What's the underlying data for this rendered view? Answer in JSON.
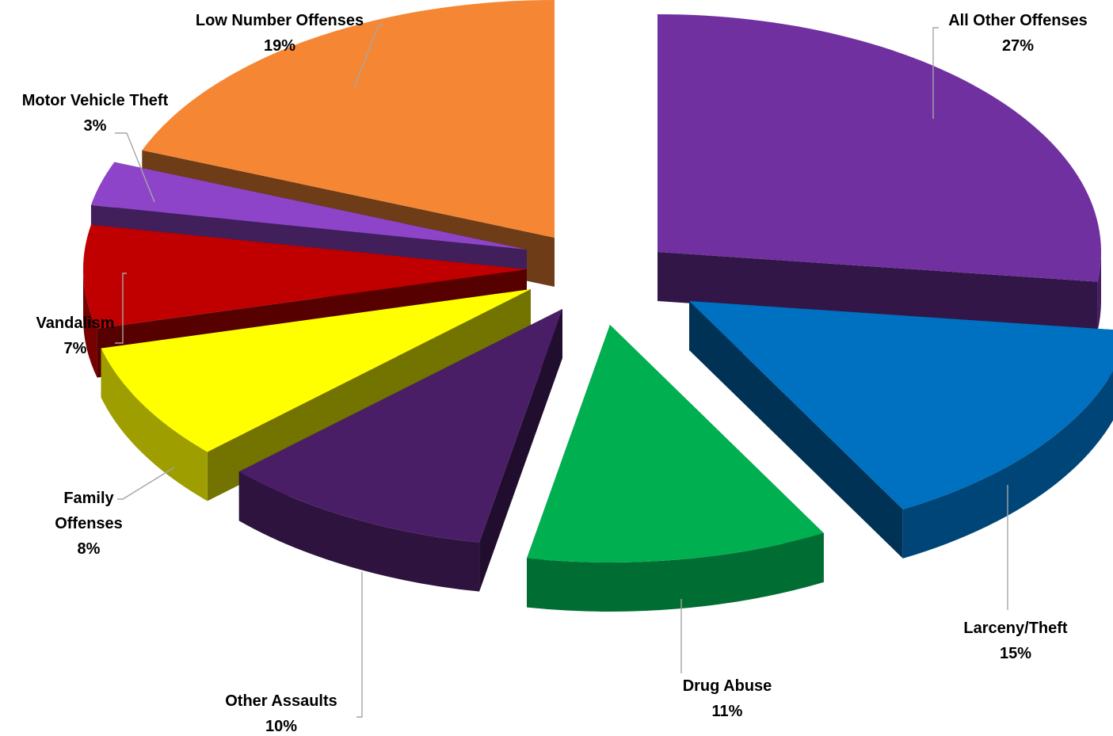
{
  "chart_data": {
    "type": "pie",
    "style": "3d-exploded",
    "title": "",
    "unit": "%",
    "legend": "none",
    "slices": [
      {
        "label": "All Other Offenses",
        "value": 27,
        "color": "#7030A0"
      },
      {
        "label": "Larceny/Theft",
        "value": 15,
        "color": "#0070C0"
      },
      {
        "label": "Drug Abuse",
        "value": 11,
        "color": "#00B050"
      },
      {
        "label": "Other Assaults",
        "value": 10,
        "color": "#4A1E66"
      },
      {
        "label": "Family Offenses",
        "value": 8,
        "color": "#FFFF00"
      },
      {
        "label": "Vandalism",
        "value": 7,
        "color": "#C00000"
      },
      {
        "label": "Motor Vehicle Theft",
        "value": 3,
        "color": "#8E44C9"
      },
      {
        "label": "Low Number Offenses",
        "value": 19,
        "color": "#F58634"
      }
    ]
  }
}
